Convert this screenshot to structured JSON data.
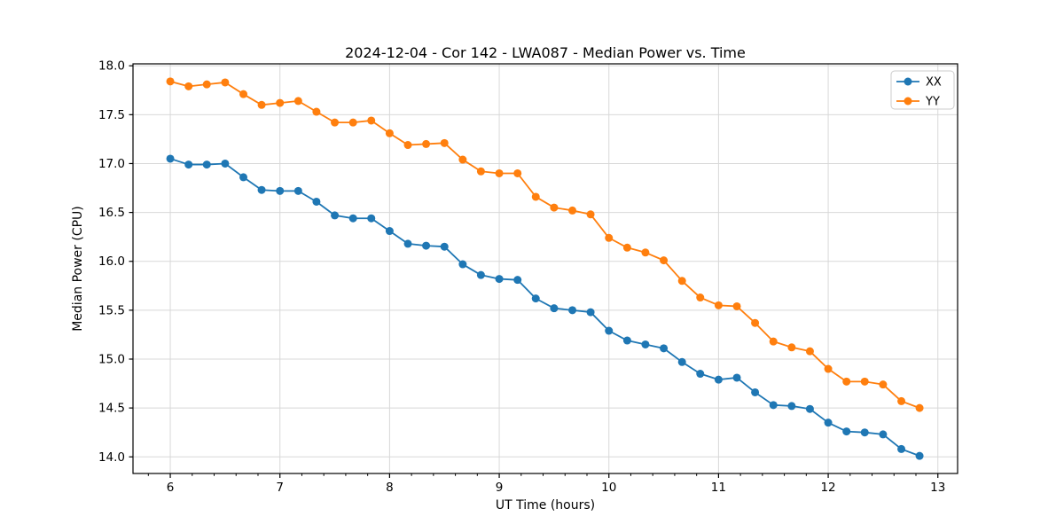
{
  "chart_data": {
    "type": "line",
    "title": "2024-12-04 - Cor 142 - LWA087 - Median Power vs. Time",
    "xlabel": "UT Time (hours)",
    "ylabel": "Median Power (CPU)",
    "xlim": [
      5.66,
      13.18
    ],
    "ylim": [
      13.83,
      18.02
    ],
    "xticks": [
      6,
      7,
      8,
      9,
      10,
      11,
      12,
      13
    ],
    "xtick_labels": [
      "6",
      "7",
      "8",
      "9",
      "10",
      "11",
      "12",
      "13"
    ],
    "x_minor_tick_step": 0.2,
    "yticks": [
      14.0,
      14.5,
      15.0,
      15.5,
      16.0,
      16.5,
      17.0,
      17.5,
      18.0
    ],
    "ytick_labels": [
      "14.0",
      "14.5",
      "15.0",
      "15.5",
      "16.0",
      "16.5",
      "17.0",
      "17.5",
      "18.0"
    ],
    "grid": true,
    "legend_position": "top-right",
    "x": [
      6.0,
      6.167,
      6.333,
      6.5,
      6.667,
      6.833,
      7.0,
      7.167,
      7.333,
      7.5,
      7.667,
      7.833,
      8.0,
      8.167,
      8.333,
      8.5,
      8.667,
      8.833,
      9.0,
      9.167,
      9.333,
      9.5,
      9.667,
      9.833,
      10.0,
      10.167,
      10.333,
      10.5,
      10.667,
      10.833,
      11.0,
      11.167,
      11.333,
      11.5,
      11.667,
      11.833,
      12.0,
      12.167,
      12.333,
      12.5,
      12.667,
      12.833
    ],
    "series": [
      {
        "name": "XX",
        "color": "#1f77b4",
        "values": [
          17.05,
          16.99,
          16.99,
          17.0,
          16.86,
          16.73,
          16.72,
          16.72,
          16.61,
          16.47,
          16.44,
          16.44,
          16.31,
          16.18,
          16.16,
          16.15,
          15.97,
          15.86,
          15.82,
          15.81,
          15.62,
          15.52,
          15.5,
          15.48,
          15.29,
          15.19,
          15.15,
          15.11,
          14.97,
          14.85,
          14.79,
          14.81,
          14.66,
          14.53,
          14.52,
          14.49,
          14.35,
          14.26,
          14.25,
          14.23,
          14.08,
          14.01
        ]
      },
      {
        "name": "YY",
        "color": "#ff7f0e",
        "values": [
          17.84,
          17.79,
          17.81,
          17.83,
          17.71,
          17.6,
          17.62,
          17.64,
          17.53,
          17.42,
          17.42,
          17.44,
          17.31,
          17.19,
          17.2,
          17.21,
          17.04,
          16.92,
          16.9,
          16.9,
          16.66,
          16.55,
          16.52,
          16.48,
          16.24,
          16.14,
          16.09,
          16.01,
          15.8,
          15.63,
          15.55,
          15.54,
          15.37,
          15.18,
          15.12,
          15.08,
          14.9,
          14.77,
          14.77,
          14.74,
          14.57,
          14.5
        ]
      }
    ],
    "colors": {
      "grid": "#d8d8d8",
      "spine": "#000000",
      "text": "#000000",
      "legend_border": "#cccccc",
      "background": "#ffffff"
    }
  }
}
